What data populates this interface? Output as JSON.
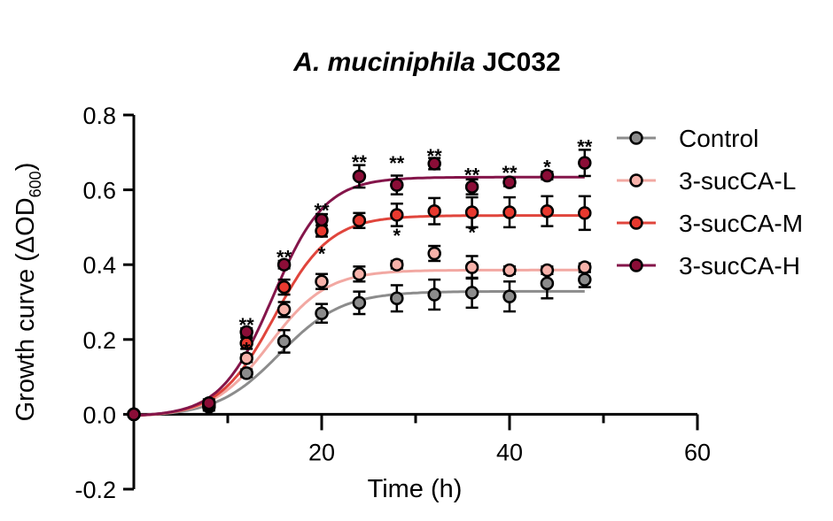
{
  "chart_data": {
    "type": "scatter",
    "title_italic": "A. muciniphila",
    "title_rest": "JC032",
    "xlabel": "Time (h)",
    "ylabel_prefix": "Growth curve (ΔOD",
    "ylabel_sub": "600",
    "ylabel_suffix": ")",
    "xlim": [
      0,
      60
    ],
    "ylim": [
      -0.2,
      0.8
    ],
    "x_ticks": [
      20,
      40,
      60
    ],
    "y_ticks": [
      -0.2,
      0.0,
      0.2,
      0.4,
      0.6,
      0.8
    ],
    "y_tick_labels": [
      "-0.2",
      "0.0",
      "0.2",
      "0.4",
      "0.6",
      "0.8"
    ],
    "x_tick_labels": [
      "20",
      "40",
      "60"
    ],
    "x": [
      0,
      8,
      12,
      16,
      20,
      24,
      28,
      32,
      36,
      40,
      44,
      48
    ],
    "legend_position": "right",
    "series": [
      {
        "name": "Control",
        "color": "#8c8c8c",
        "curve_color": "#8c8c8c",
        "values": [
          0.0,
          0.02,
          0.11,
          0.195,
          0.27,
          0.298,
          0.31,
          0.32,
          0.325,
          0.315,
          0.35,
          0.36
        ],
        "errors": [
          0,
          0.01,
          0.01,
          0.03,
          0.025,
          0.03,
          0.035,
          0.04,
          0.04,
          0.04,
          0.04,
          0.02
        ],
        "fit": {
          "plateau": 0.335,
          "midpoint": 15.5,
          "rate": 0.3
        }
      },
      {
        "name": "3-sucCA-L",
        "color": "#f7b2aa",
        "curve_color": "#f2a8a2",
        "values": [
          0.0,
          0.025,
          0.15,
          0.28,
          0.355,
          0.375,
          0.4,
          0.43,
          0.393,
          0.385,
          0.385,
          0.393
        ],
        "errors": [
          0,
          0.01,
          0.01,
          0.02,
          0.02,
          0.02,
          0.01,
          0.02,
          0.03,
          0.01,
          0.01,
          0.01
        ],
        "fit": {
          "plateau": 0.392,
          "midpoint": 14.5,
          "rate": 0.33
        }
      },
      {
        "name": "3-sucCA-M",
        "color": "#e8392f",
        "curve_color": "#e0453c",
        "values": [
          0.0,
          0.025,
          0.19,
          0.34,
          0.49,
          0.518,
          0.533,
          0.543,
          0.54,
          0.54,
          0.543,
          0.538
        ],
        "errors": [
          0,
          0.01,
          0.015,
          0.02,
          0.015,
          0.02,
          0.03,
          0.035,
          0.04,
          0.04,
          0.04,
          0.045
        ],
        "fit": {
          "plateau": 0.538,
          "midpoint": 15.0,
          "rate": 0.34
        }
      },
      {
        "name": "3-sucCA-H",
        "color": "#8b0d37",
        "curve_color": "#84154a",
        "values": [
          0.0,
          0.03,
          0.22,
          0.4,
          0.52,
          0.636,
          0.613,
          0.67,
          0.608,
          0.62,
          0.638,
          0.672
        ],
        "errors": [
          0,
          0.01,
          0.01,
          0.01,
          0.015,
          0.03,
          0.025,
          0.015,
          0.02,
          0.01,
          0.01,
          0.035
        ],
        "fit": {
          "plateau": 0.64,
          "midpoint": 14.8,
          "rate": 0.36
        }
      }
    ],
    "annotations": [
      {
        "x": 12,
        "y": 0.24,
        "text": "**"
      },
      {
        "x": 12,
        "y": 0.175,
        "text": "*"
      },
      {
        "x": 16,
        "y": 0.42,
        "text": "**"
      },
      {
        "x": 20,
        "y": 0.546,
        "text": "**"
      },
      {
        "x": 20,
        "y": 0.43,
        "text": "*"
      },
      {
        "x": 24,
        "y": 0.675,
        "text": "**"
      },
      {
        "x": 28,
        "y": 0.672,
        "text": "**"
      },
      {
        "x": 28,
        "y": 0.478,
        "text": "*"
      },
      {
        "x": 32,
        "y": 0.691,
        "text": "**"
      },
      {
        "x": 36,
        "y": 0.64,
        "text": "**"
      },
      {
        "x": 36,
        "y": 0.487,
        "text": "*"
      },
      {
        "x": 40,
        "y": 0.646,
        "text": "**"
      },
      {
        "x": 44,
        "y": 0.662,
        "text": "*"
      },
      {
        "x": 48,
        "y": 0.716,
        "text": "**"
      }
    ]
  }
}
